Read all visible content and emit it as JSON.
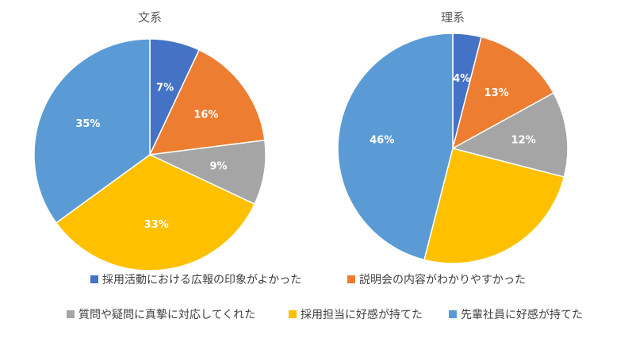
{
  "chart_data": [
    {
      "type": "pie",
      "title": "文系",
      "categories": [
        "採用活動における広報の印象がよかった",
        "説明会の内容がわかりやすかった",
        "質問や疑問に真摯に対応してくれた",
        "採用担当に好感が持てた",
        "先輩社員に好感が持てた"
      ],
      "values": [
        7,
        16,
        9,
        33,
        35
      ],
      "labels": [
        "7%",
        "16%",
        "9%",
        "33%",
        "35%"
      ],
      "colors": [
        "#4472c4",
        "#ed7d31",
        "#a5a5a5",
        "#ffc000",
        "#5b9bd5"
      ]
    },
    {
      "type": "pie",
      "title": "理系",
      "categories": [
        "採用活動における広報の印象がよかった",
        "説明会の内容がわかりやすかった",
        "質問や疑問に真摯に対応してくれた",
        "採用担当に好感が持てた",
        "先輩社員に好感が持てた"
      ],
      "values": [
        4,
        13,
        12,
        25,
        46
      ],
      "labels": [
        "4%",
        "13%",
        "12%",
        "",
        "46%"
      ],
      "colors": [
        "#4472c4",
        "#ed7d31",
        "#a5a5a5",
        "#ffc000",
        "#5b9bd5"
      ]
    }
  ],
  "legend": {
    "position": "bottom",
    "items": [
      {
        "label": "採用活動における広報の印象がよかった",
        "color": "#4472c4"
      },
      {
        "label": "説明会の内容がわかりやすかった",
        "color": "#ed7d31"
      },
      {
        "label": "質問や疑問に真摯に対応してくれた",
        "color": "#a5a5a5"
      },
      {
        "label": "採用担当に好感が持てた",
        "color": "#ffc000"
      },
      {
        "label": "先輩社員に好感が持てた",
        "color": "#5b9bd5"
      }
    ]
  }
}
